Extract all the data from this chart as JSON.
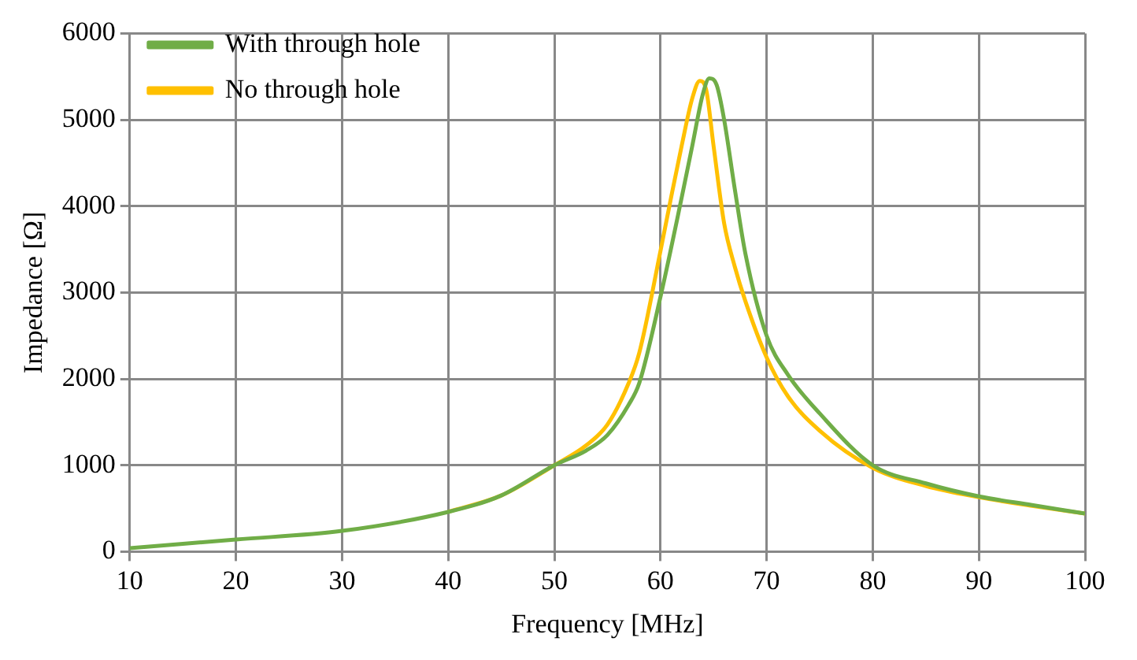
{
  "chart_data": {
    "type": "line",
    "xlabel": "Frequency [MHz]",
    "ylabel": "Impedance [Ω]",
    "xlim": [
      10,
      100
    ],
    "xticks": [
      10,
      20,
      30,
      40,
      50,
      60,
      70,
      80,
      90,
      100
    ],
    "ylim": [
      0,
      6000
    ],
    "yticks": [
      0,
      1000,
      2000,
      3000,
      4000,
      5000,
      6000
    ],
    "grid": true,
    "legend": "top left",
    "marker": "none",
    "line_style": "solid",
    "series": [
      {
        "name": "With through hole",
        "color": "#70ad47",
        "x": [
          10,
          20,
          30,
          40,
          45,
          50,
          53,
          55,
          57,
          58,
          60,
          62,
          63,
          64,
          64.6,
          65.3,
          66,
          67,
          68,
          70,
          72,
          75,
          80,
          85,
          90,
          95,
          100
        ],
        "values": [
          40,
          140,
          240,
          460,
          650,
          1000,
          1170,
          1350,
          1700,
          1950,
          2950,
          4100,
          4700,
          5300,
          5480,
          5400,
          5000,
          4200,
          3450,
          2500,
          2050,
          1600,
          1000,
          790,
          640,
          540,
          440
        ]
      },
      {
        "name": "No through hole",
        "color": "#ffc000",
        "x": [
          40,
          45,
          50,
          53,
          55,
          57,
          58,
          60,
          61,
          62,
          63,
          63.7,
          64.3,
          65,
          66,
          67,
          68,
          70,
          72,
          75,
          80,
          85,
          90,
          95,
          100
        ],
        "values": [
          460,
          650,
          1000,
          1230,
          1470,
          1950,
          2300,
          3480,
          4100,
          4700,
          5250,
          5450,
          5350,
          4700,
          3800,
          3300,
          2900,
          2250,
          1800,
          1400,
          970,
          760,
          630,
          530,
          440
        ]
      }
    ]
  }
}
